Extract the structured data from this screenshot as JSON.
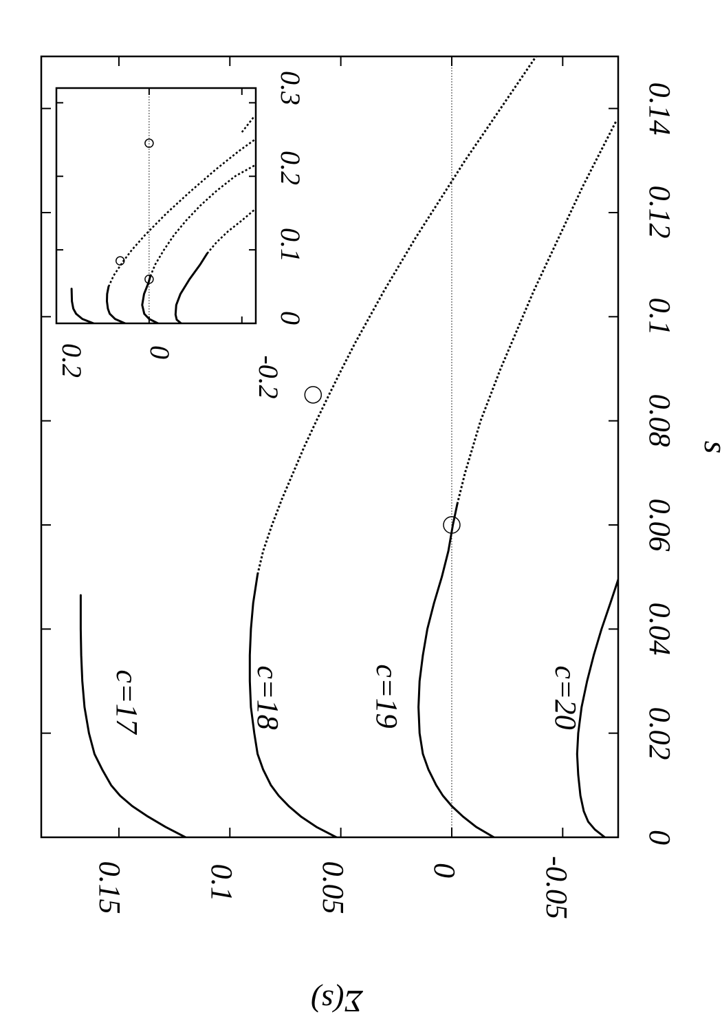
{
  "chart_data": [
    {
      "type": "line",
      "xlabel": "s",
      "ylabel": "Σ(s)",
      "xlim": [
        0,
        0.15
      ],
      "ylim": [
        -0.075,
        0.185
      ],
      "xticks": [
        0,
        0.02,
        0.04,
        0.06,
        0.08,
        0.1,
        0.12,
        0.14
      ],
      "xtick_labels": [
        "0",
        "0.02",
        "0.04",
        "0.06",
        "0.08",
        "0.1",
        "0.12",
        "0.14"
      ],
      "yticks": [
        -0.05,
        0,
        0.05,
        0.1,
        0.15
      ],
      "ytick_labels": [
        "-0.05",
        "0",
        "0.05",
        "0.1",
        "0.15"
      ],
      "zero_line": true,
      "series": [
        {
          "name": "c=17",
          "solid": [
            [
              0,
              0.12
            ],
            [
              0.002,
              0.129
            ],
            [
              0.004,
              0.137
            ],
            [
              0.006,
              0.144
            ],
            [
              0.008,
              0.1495
            ],
            [
              0.01,
              0.1535
            ],
            [
              0.013,
              0.1575
            ],
            [
              0.016,
              0.161
            ],
            [
              0.02,
              0.1635
            ],
            [
              0.025,
              0.1655
            ],
            [
              0.03,
              0.1665
            ],
            [
              0.035,
              0.167
            ],
            [
              0.04,
              0.1672
            ],
            [
              0.0465,
              0.1672
            ]
          ],
          "dotted": []
        },
        {
          "name": "c=18",
          "solid": [
            [
              0,
              0.052
            ],
            [
              0.002,
              0.061
            ],
            [
              0.004,
              0.068
            ],
            [
              0.006,
              0.0735
            ],
            [
              0.008,
              0.078
            ],
            [
              0.01,
              0.0815
            ],
            [
              0.013,
              0.085
            ],
            [
              0.016,
              0.0875
            ],
            [
              0.02,
              0.089
            ],
            [
              0.025,
              0.0905
            ],
            [
              0.03,
              0.091
            ],
            [
              0.035,
              0.091
            ],
            [
              0.04,
              0.0905
            ],
            [
              0.045,
              0.0895
            ],
            [
              0.0505,
              0.0875
            ]
          ],
          "dotted": [
            [
              0.0505,
              0.0875
            ],
            [
              0.055,
              0.085
            ],
            [
              0.06,
              0.081
            ],
            [
              0.065,
              0.0765
            ],
            [
              0.07,
              0.0715
            ],
            [
              0.075,
              0.0665
            ],
            [
              0.08,
              0.061
            ],
            [
              0.085,
              0.0553
            ],
            [
              0.09,
              0.0495
            ],
            [
              0.095,
              0.0435
            ],
            [
              0.1,
              0.037
            ],
            [
              0.105,
              0.0305
            ],
            [
              0.11,
              0.0235
            ],
            [
              0.115,
              0.0165
            ],
            [
              0.12,
              0.009
            ],
            [
              0.125,
              0.0015
            ],
            [
              0.13,
              -0.006
            ],
            [
              0.135,
              -0.014
            ],
            [
              0.14,
              -0.022
            ],
            [
              0.145,
              -0.03
            ],
            [
              0.15,
              -0.038
            ]
          ]
        },
        {
          "name": "c=19",
          "solid": [
            [
              0,
              -0.019
            ],
            [
              0.002,
              -0.011
            ],
            [
              0.004,
              -0.005
            ],
            [
              0.006,
              0.0
            ],
            [
              0.008,
              0.004
            ],
            [
              0.01,
              0.007
            ],
            [
              0.013,
              0.0105
            ],
            [
              0.016,
              0.013
            ],
            [
              0.02,
              0.0145
            ],
            [
              0.025,
              0.015
            ],
            [
              0.03,
              0.0145
            ],
            [
              0.035,
              0.013
            ],
            [
              0.04,
              0.011
            ],
            [
              0.045,
              0.008
            ],
            [
              0.05,
              0.0045
            ],
            [
              0.055,
              0.0015
            ],
            [
              0.06,
              -0.0005
            ],
            [
              0.064,
              -0.0025
            ]
          ],
          "dotted": [
            [
              0.064,
              -0.0025
            ],
            [
              0.07,
              -0.006
            ],
            [
              0.075,
              -0.0095
            ],
            [
              0.08,
              -0.013
            ],
            [
              0.085,
              -0.0175
            ],
            [
              0.09,
              -0.022
            ],
            [
              0.095,
              -0.027
            ],
            [
              0.1,
              -0.032
            ],
            [
              0.105,
              -0.037
            ],
            [
              0.11,
              -0.0425
            ],
            [
              0.115,
              -0.048
            ],
            [
              0.12,
              -0.0535
            ],
            [
              0.125,
              -0.059
            ],
            [
              0.13,
              -0.065
            ],
            [
              0.135,
              -0.071
            ],
            [
              0.1375,
              -0.074
            ]
          ]
        },
        {
          "name": "c=20",
          "solid": [
            [
              0,
              -0.069
            ],
            [
              0.0015,
              -0.0645
            ],
            [
              0.003,
              -0.0615
            ],
            [
              0.005,
              -0.0595
            ],
            [
              0.008,
              -0.058
            ],
            [
              0.012,
              -0.057
            ],
            [
              0.016,
              -0.0565
            ],
            [
              0.02,
              -0.057
            ],
            [
              0.025,
              -0.0585
            ],
            [
              0.03,
              -0.061
            ],
            [
              0.035,
              -0.064
            ],
            [
              0.04,
              -0.0675
            ],
            [
              0.045,
              -0.0715
            ],
            [
              0.0495,
              -0.075
            ]
          ],
          "dotted": []
        }
      ],
      "labels": [
        "c=17",
        "c=18",
        "c=19",
        "c=20"
      ],
      "markers": [
        [
          0.06,
          0.0
        ],
        [
          0.085,
          0.0625
        ]
      ]
    },
    {
      "type": "line",
      "inset": true,
      "xlim": [
        0,
        0.32
      ],
      "ylim": [
        -0.23,
        0.2
      ],
      "xticks": [
        0,
        0.1,
        0.2,
        0.3
      ],
      "xtick_labels": [
        "0",
        "0.1",
        "0.2",
        "0.3"
      ],
      "yticks": [
        -0.2,
        0,
        0.2
      ],
      "ytick_labels": [
        "-0.2",
        "0",
        "0.2"
      ],
      "zero_line": true,
      "series": [
        {
          "name": "c=17",
          "solid": [
            [
              0,
              0.12
            ],
            [
              0.006,
              0.144
            ],
            [
              0.013,
              0.1575
            ],
            [
              0.02,
              0.1635
            ],
            [
              0.03,
              0.1665
            ],
            [
              0.047,
              0.1672
            ]
          ],
          "dotted": [
            [
              0.26,
              -0.2
            ],
            [
              0.28,
              -0.225
            ]
          ]
        },
        {
          "name": "c=18",
          "solid": [
            [
              0,
              0.052
            ],
            [
              0.006,
              0.0735
            ],
            [
              0.013,
              0.085
            ],
            [
              0.02,
              0.089
            ],
            [
              0.03,
              0.091
            ],
            [
              0.04,
              0.0905
            ],
            [
              0.05,
              0.0875
            ]
          ],
          "dotted": [
            [
              0.05,
              0.0875
            ],
            [
              0.065,
              0.0765
            ],
            [
              0.085,
              0.0553
            ],
            [
              0.1,
              0.037
            ],
            [
              0.12,
              0.009
            ],
            [
              0.15,
              -0.038
            ],
            [
              0.18,
              -0.09
            ],
            [
              0.21,
              -0.145
            ],
            [
              0.235,
              -0.195
            ],
            [
              0.25,
              -0.228
            ]
          ]
        },
        {
          "name": "c=19",
          "solid": [
            [
              0,
              -0.019
            ],
            [
              0.006,
              0.0
            ],
            [
              0.013,
              0.0105
            ],
            [
              0.025,
              0.015
            ],
            [
              0.04,
              0.011
            ],
            [
              0.055,
              0.0015
            ],
            [
              0.064,
              -0.0025
            ]
          ],
          "dotted": [
            [
              0.064,
              -0.0025
            ],
            [
              0.08,
              -0.013
            ],
            [
              0.1,
              -0.032
            ],
            [
              0.12,
              -0.0535
            ],
            [
              0.14,
              -0.08
            ],
            [
              0.16,
              -0.11
            ],
            [
              0.18,
              -0.145
            ],
            [
              0.2,
              -0.185
            ],
            [
              0.215,
              -0.228
            ]
          ]
        },
        {
          "name": "c=20",
          "solid": [
            [
              0,
              -0.069
            ],
            [
              0.005,
              -0.0595
            ],
            [
              0.012,
              -0.057
            ],
            [
              0.025,
              -0.0585
            ],
            [
              0.04,
              -0.0675
            ],
            [
              0.06,
              -0.087
            ],
            [
              0.08,
              -0.11
            ],
            [
              0.095,
              -0.125
            ]
          ],
          "dotted": [
            [
              0.095,
              -0.125
            ],
            [
              0.11,
              -0.145
            ],
            [
              0.125,
              -0.17
            ],
            [
              0.14,
              -0.2
            ],
            [
              0.155,
              -0.228
            ]
          ]
        }
      ],
      "markers": [
        [
          0.06,
          0.0
        ],
        [
          0.085,
          0.0625
        ],
        [
          0.245,
          0.0
        ]
      ]
    }
  ]
}
